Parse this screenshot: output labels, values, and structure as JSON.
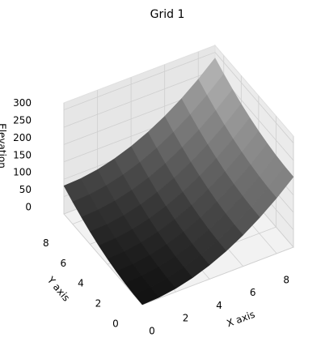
{
  "chart_data": {
    "type": "surface",
    "title": "Grid 1",
    "xlabel": "X axis",
    "ylabel": "Y axis",
    "zlabel": "Elevation",
    "x": [
      0,
      1,
      2,
      3,
      4,
      5,
      6,
      7,
      8,
      9
    ],
    "y": [
      0,
      1,
      2,
      3,
      4,
      5,
      6,
      7,
      8,
      9
    ],
    "z": [
      [
        0,
        2.5,
        10,
        22.5,
        40,
        62.5,
        90,
        122.5,
        160,
        202.5
      ],
      [
        1,
        3.5,
        11,
        23.5,
        41,
        63.5,
        91,
        123.5,
        161,
        203.5
      ],
      [
        4,
        6.5,
        14,
        26.5,
        44,
        66.5,
        94,
        126.5,
        164,
        206.5
      ],
      [
        9,
        11.5,
        19,
        31.5,
        49,
        71.5,
        99,
        131.5,
        169,
        211.5
      ],
      [
        16,
        18.5,
        26,
        38.5,
        56,
        78.5,
        106,
        138.5,
        176,
        218.5
      ],
      [
        25,
        27.5,
        35,
        47.5,
        65,
        87.5,
        115,
        147.5,
        185,
        227.5
      ],
      [
        36,
        38.5,
        46,
        58.5,
        76,
        98.5,
        126,
        158.5,
        196,
        238.5
      ],
      [
        49,
        51.5,
        59,
        71.5,
        89,
        111.5,
        139,
        171.5,
        209,
        251.5
      ],
      [
        64,
        66.5,
        74,
        86.5,
        104,
        126.5,
        154,
        186.5,
        224,
        266.5
      ],
      [
        81,
        83.5,
        91,
        103.5,
        121,
        143.5,
        171,
        203.5,
        241,
        283.5
      ]
    ],
    "xlim": [
      0,
      9
    ],
    "ylim": [
      0,
      9
    ],
    "zlim": [
      0,
      320
    ],
    "xticks": [
      0,
      2,
      4,
      6,
      8
    ],
    "yticks": [
      0,
      2,
      4,
      6,
      8
    ],
    "zticks": [
      0,
      50,
      100,
      150,
      200,
      250,
      300
    ],
    "colormap": "gray",
    "grid": true
  }
}
